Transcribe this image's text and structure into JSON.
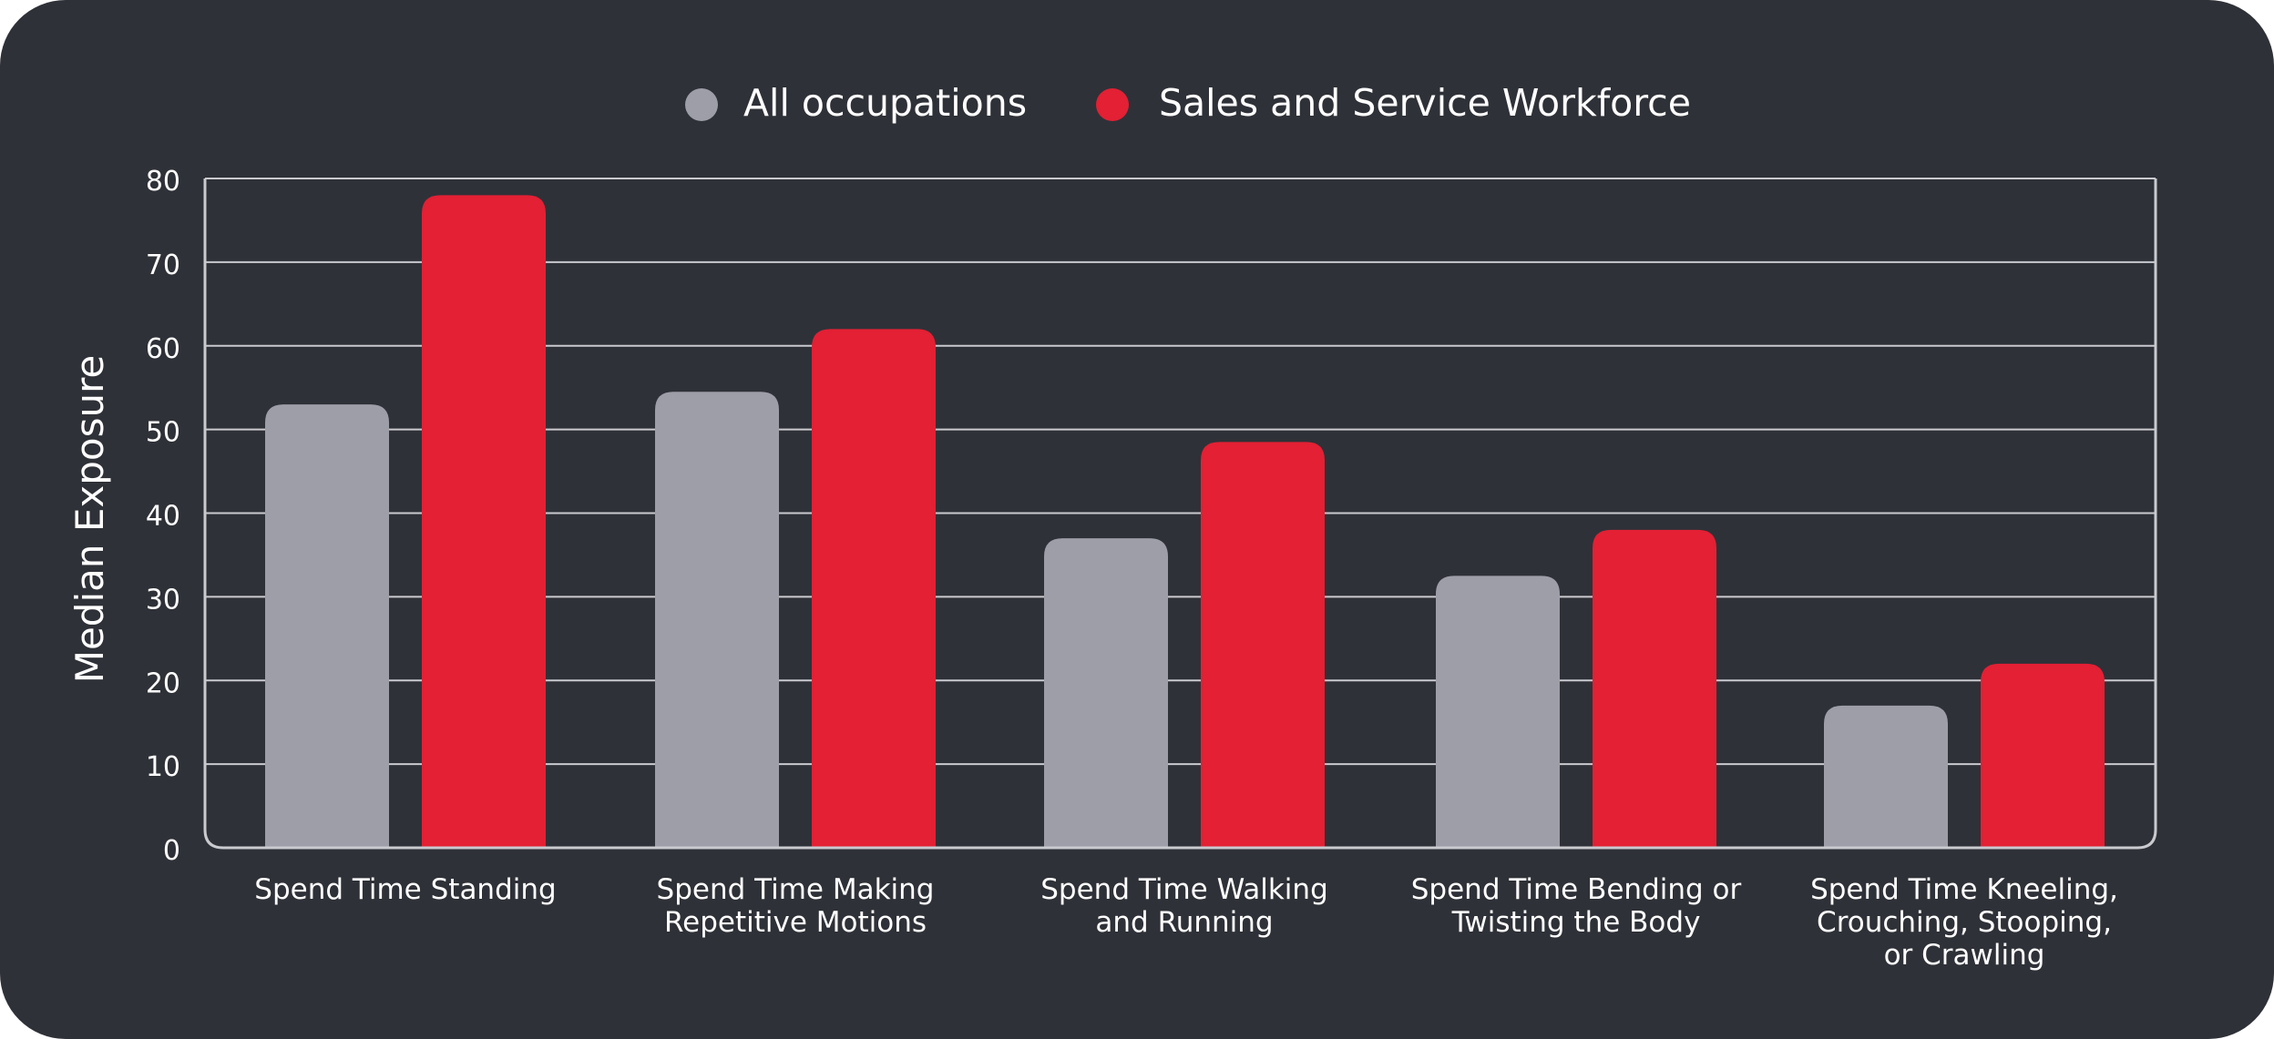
{
  "chart_data": {
    "type": "bar",
    "ylabel": "Median Exposure",
    "ylim": [
      0,
      80
    ],
    "yticks": [
      0,
      10,
      20,
      30,
      40,
      50,
      60,
      70,
      80
    ],
    "grid": true,
    "legend_position": "top-center",
    "categories": [
      [
        "Spend Time Standing"
      ],
      [
        "Spend Time Making",
        "Repetitive Motions"
      ],
      [
        "Spend Time Walking",
        "and Running"
      ],
      [
        "Spend Time Bending or",
        "Twisting the Body"
      ],
      [
        "Spend Time Kneeling,",
        "Crouching, Stooping,",
        "or Crawling"
      ]
    ],
    "series": [
      {
        "name": "All occupations",
        "color": "#9d9ea8",
        "values": [
          53,
          54.5,
          37,
          32.5,
          17
        ]
      },
      {
        "name": "Sales and Service Workforce",
        "color": "#e32034",
        "values": [
          78,
          62,
          48.5,
          38,
          22
        ]
      }
    ]
  },
  "colors": {
    "background": "#2f3138",
    "gridline": "#c9cacf",
    "text": "#ffffff"
  }
}
